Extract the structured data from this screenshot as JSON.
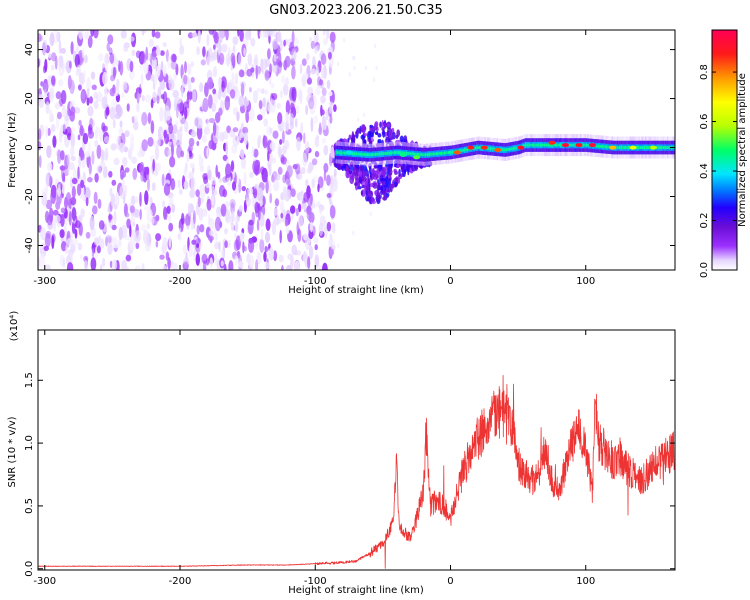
{
  "figure": {
    "title": "GN03.2023.206.21.50.C35"
  },
  "chart_data": [
    {
      "type": "heatmap",
      "title": "GN03.2023.206.21.50.C35",
      "xlabel": "Height of straight line (km)",
      "ylabel": "Frequency (Hz)",
      "xlim": [
        -305,
        166
      ],
      "ylim": [
        -50,
        48
      ],
      "x_ticks": [
        -300,
        -200,
        -100,
        0,
        100
      ],
      "x_tick_labels": [
        "-300",
        "-200",
        "-100",
        "0",
        "100"
      ],
      "y_ticks": [
        -40,
        -20,
        0,
        20,
        40
      ],
      "y_tick_labels": [
        "-40",
        "-20",
        "0",
        "20",
        "40"
      ],
      "colorbar": {
        "label": "Normalized spectral amplitude",
        "range": [
          0,
          0.97
        ],
        "ticks": [
          0.0,
          0.2,
          0.4,
          0.6,
          0.8
        ],
        "tick_labels": [
          "0.0",
          "0.2",
          "0.4",
          "0.6",
          "0.8"
        ],
        "colormap": [
          "#ffffff",
          "#e6d6ff",
          "#9b30ff",
          "#6a0dd6",
          "#2200ff",
          "#0077ff",
          "#00e5ff",
          "#00ff66",
          "#b8ff00",
          "#ffff00",
          "#ff9900",
          "#ff1a1a",
          "#ff0055"
        ]
      },
      "regions": [
        {
          "x_range": [
            -305,
            -85
          ],
          "freq_range": [
            -50,
            48
          ],
          "amplitude": 0.12,
          "pattern": "scattered noise"
        },
        {
          "x_range": [
            -85,
            -15
          ],
          "freq_range": [
            -25,
            5
          ],
          "amplitude": 0.3,
          "pattern": "turbulent onset"
        },
        {
          "x_range": [
            -15,
            166
          ],
          "freq_range": [
            -3,
            4
          ],
          "amplitude": 0.6,
          "pattern": "narrow band near 0 Hz"
        }
      ],
      "band_center": {
        "x": [
          -85,
          -60,
          -40,
          -20,
          0,
          20,
          40,
          50,
          55,
          80,
          100,
          120,
          166
        ],
        "freq": [
          -2,
          -3,
          -2,
          -3,
          -2,
          0,
          -1,
          0,
          1,
          1,
          1,
          0,
          0
        ]
      },
      "peaks": {
        "x": [
          -75,
          -35,
          -25,
          5,
          15,
          25,
          35,
          52,
          75,
          85,
          95,
          105,
          120,
          135,
          150
        ],
        "freq": [
          -2,
          -3,
          -4,
          -2,
          0,
          0,
          -1,
          0,
          2,
          1,
          1,
          1,
          0,
          0,
          0
        ],
        "amplitude": [
          0.5,
          0.55,
          0.6,
          0.85,
          0.9,
          0.88,
          0.85,
          0.92,
          0.88,
          0.92,
          0.9,
          0.93,
          0.78,
          0.7,
          0.65
        ]
      },
      "grid": false
    },
    {
      "type": "line",
      "title": "",
      "xlabel": "Height of straight line (km)",
      "ylabel": "SNR (10 * v/v)",
      "y_multiplier": "(x10⁴)",
      "xlim": [
        -305,
        166
      ],
      "ylim": [
        -0.01,
        1.9
      ],
      "x_ticks": [
        -300,
        -200,
        -100,
        0,
        100
      ],
      "x_tick_labels": [
        "-300",
        "-200",
        "-100",
        "0",
        "100"
      ],
      "y_ticks": [
        0.0,
        0.5,
        1.0,
        1.5
      ],
      "y_tick_labels": [
        "0.0",
        "0.5",
        "1.0",
        "1.5"
      ],
      "grid": false,
      "series": [
        {
          "color": "#ee3333",
          "x": [
            -305,
            -250,
            -200,
            -150,
            -120,
            -100,
            -80,
            -70,
            -60,
            -50,
            -45,
            -42,
            -40,
            -38,
            -35,
            -30,
            -25,
            -20,
            -18,
            -15,
            -10,
            -5,
            0,
            5,
            10,
            15,
            20,
            25,
            30,
            35,
            40,
            45,
            50,
            55,
            60,
            65,
            70,
            75,
            80,
            85,
            90,
            95,
            100,
            105,
            107,
            110,
            115,
            120,
            125,
            130,
            135,
            140,
            145,
            150,
            155,
            160,
            166
          ],
          "y": [
            0.02,
            0.02,
            0.02,
            0.03,
            0.03,
            0.04,
            0.05,
            0.06,
            0.12,
            0.2,
            0.3,
            0.45,
            0.85,
            0.35,
            0.3,
            0.25,
            0.4,
            0.6,
            1.1,
            0.5,
            0.55,
            0.5,
            0.4,
            0.6,
            0.8,
            0.9,
            1.05,
            1.1,
            1.2,
            1.25,
            1.2,
            1.15,
            0.85,
            0.75,
            0.7,
            0.75,
            0.95,
            0.7,
            0.6,
            0.8,
            1.0,
            1.1,
            0.95,
            0.6,
            1.35,
            1.0,
            0.95,
            0.85,
            0.9,
            0.8,
            0.75,
            0.7,
            0.75,
            0.8,
            0.85,
            0.9,
            0.95
          ]
        }
      ]
    }
  ]
}
